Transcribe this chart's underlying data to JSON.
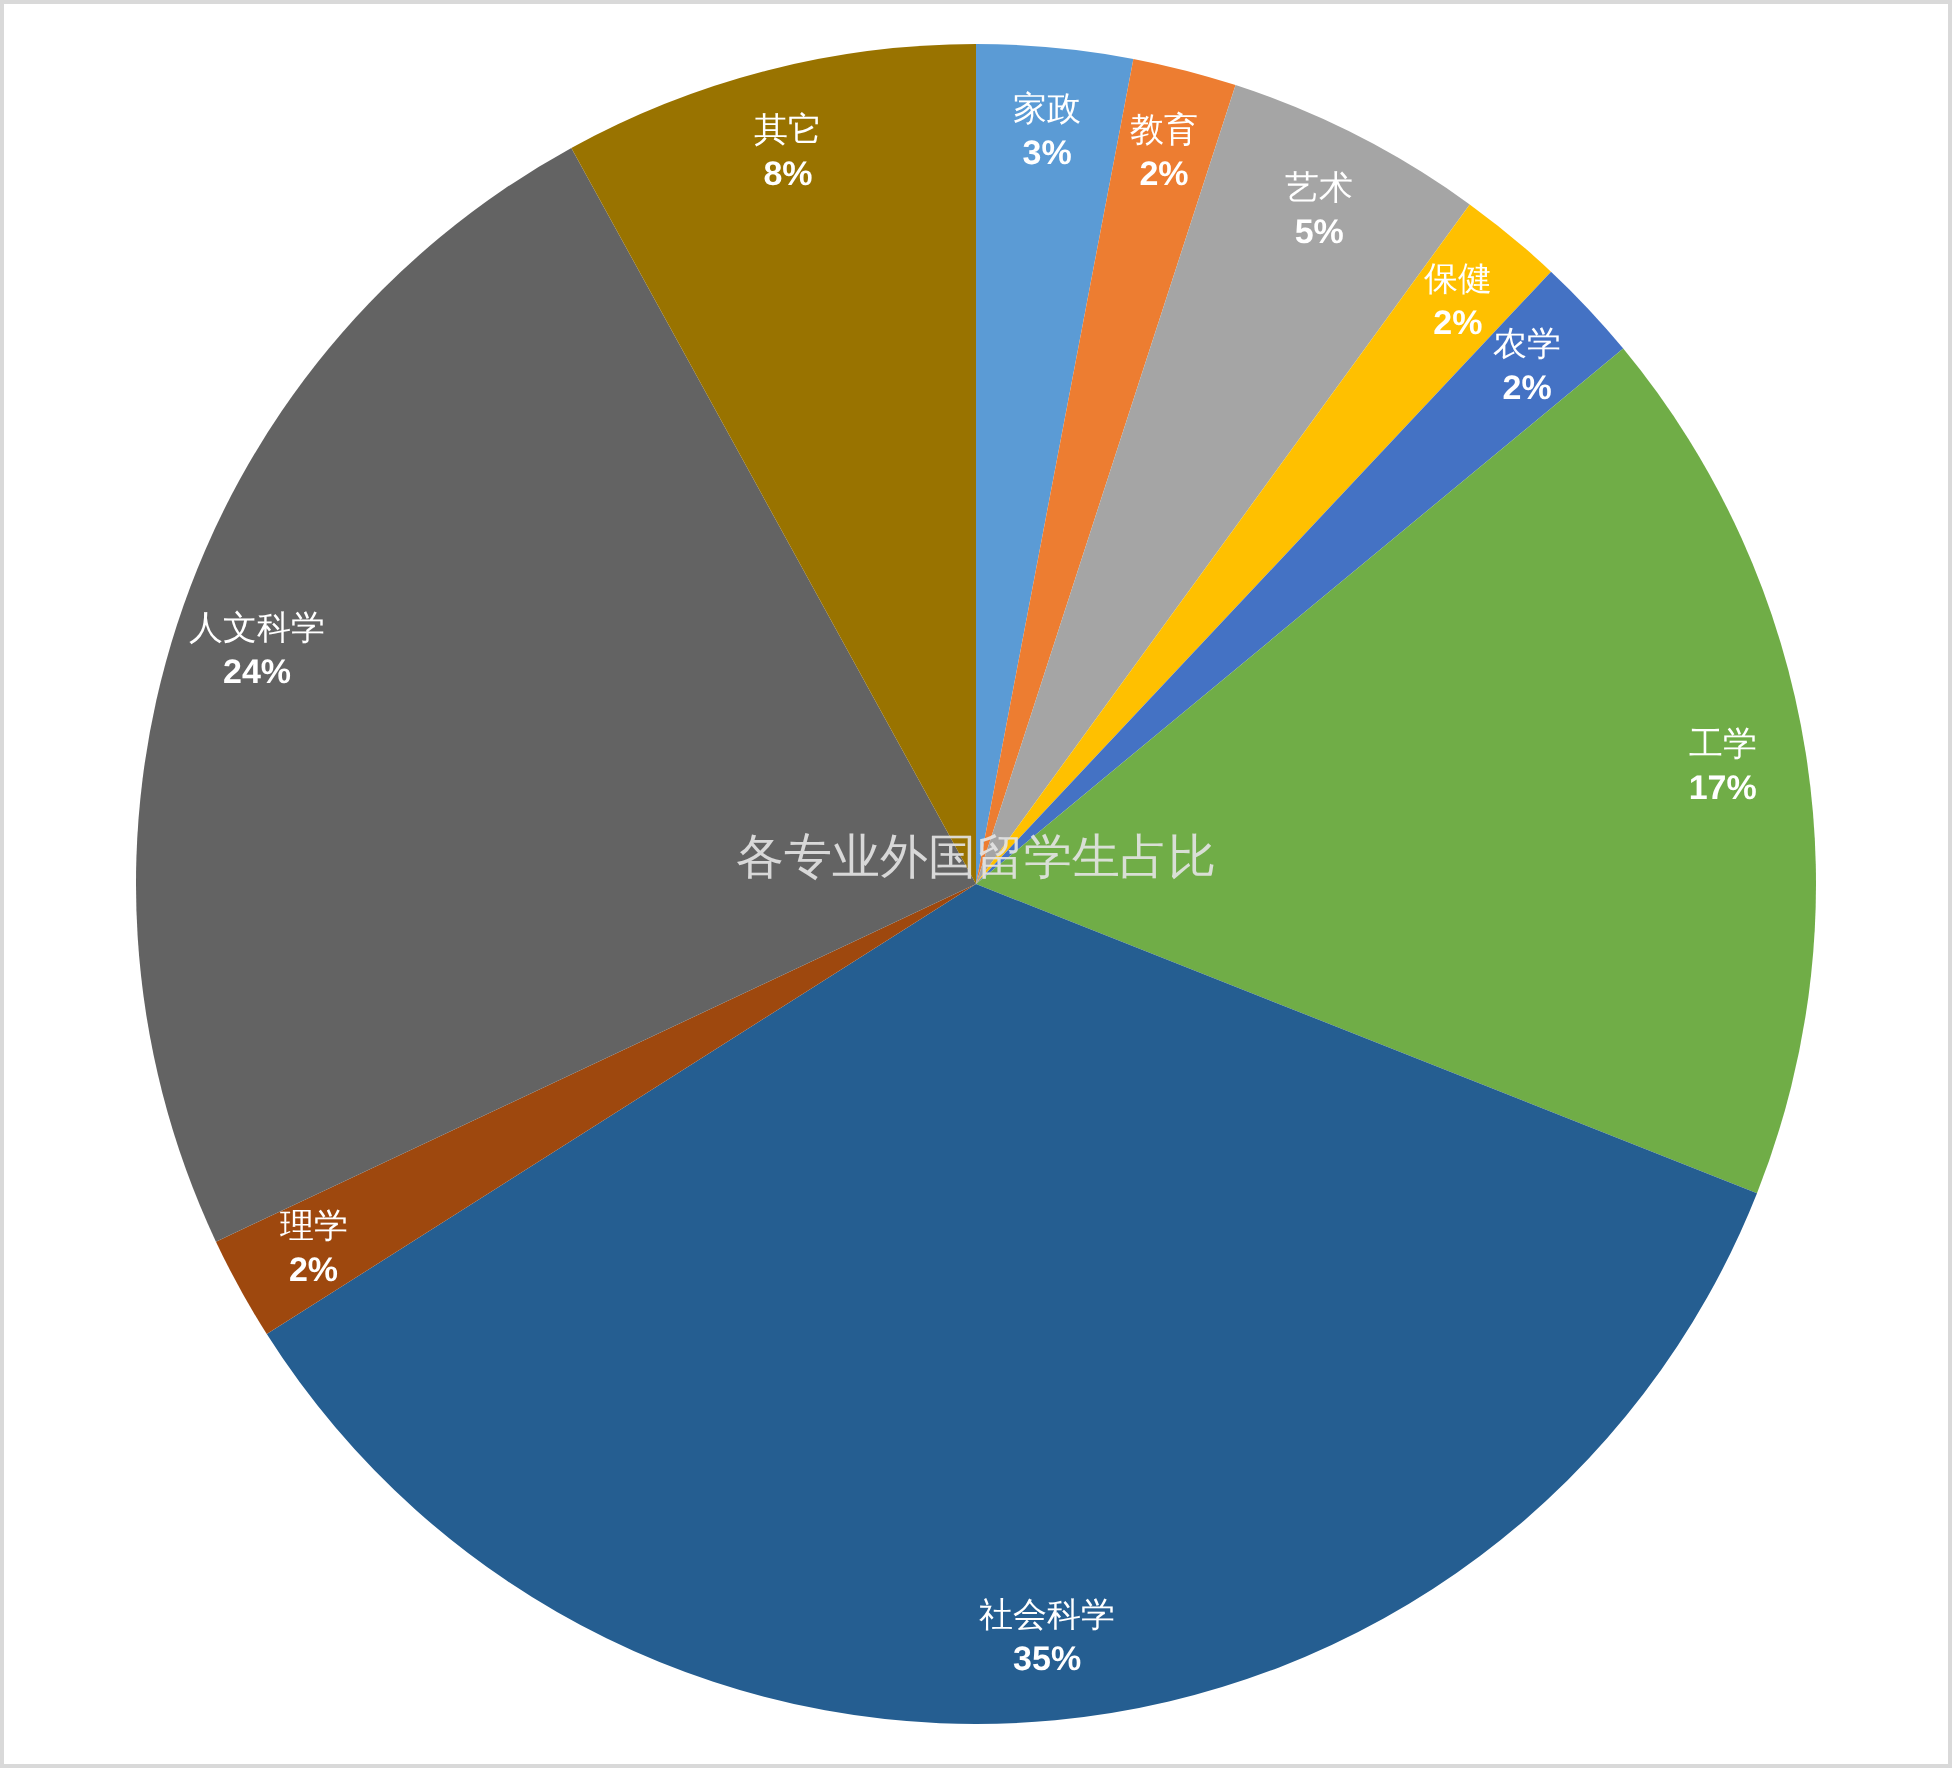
{
  "chart_data": {
    "type": "pie",
    "title": "各专业外国留学生占比",
    "categories": [
      "家政",
      "教育",
      "艺术",
      "保健",
      "农学",
      "工学",
      "社会科学",
      "理学",
      "人文科学",
      "其它"
    ],
    "values": [
      3,
      2,
      5,
      2,
      2,
      17,
      35,
      2,
      24,
      8
    ],
    "value_labels": [
      "3%",
      "2%",
      "5%",
      "2%",
      "2%",
      "17%",
      "35%",
      "2%",
      "24%",
      "8%"
    ],
    "colors": [
      "#5b9bd5",
      "#ed7d31",
      "#a5a5a5",
      "#ffc000",
      "#4472c4",
      "#70ad47",
      "#255e91",
      "#9e480e",
      "#636363",
      "#997300"
    ]
  }
}
